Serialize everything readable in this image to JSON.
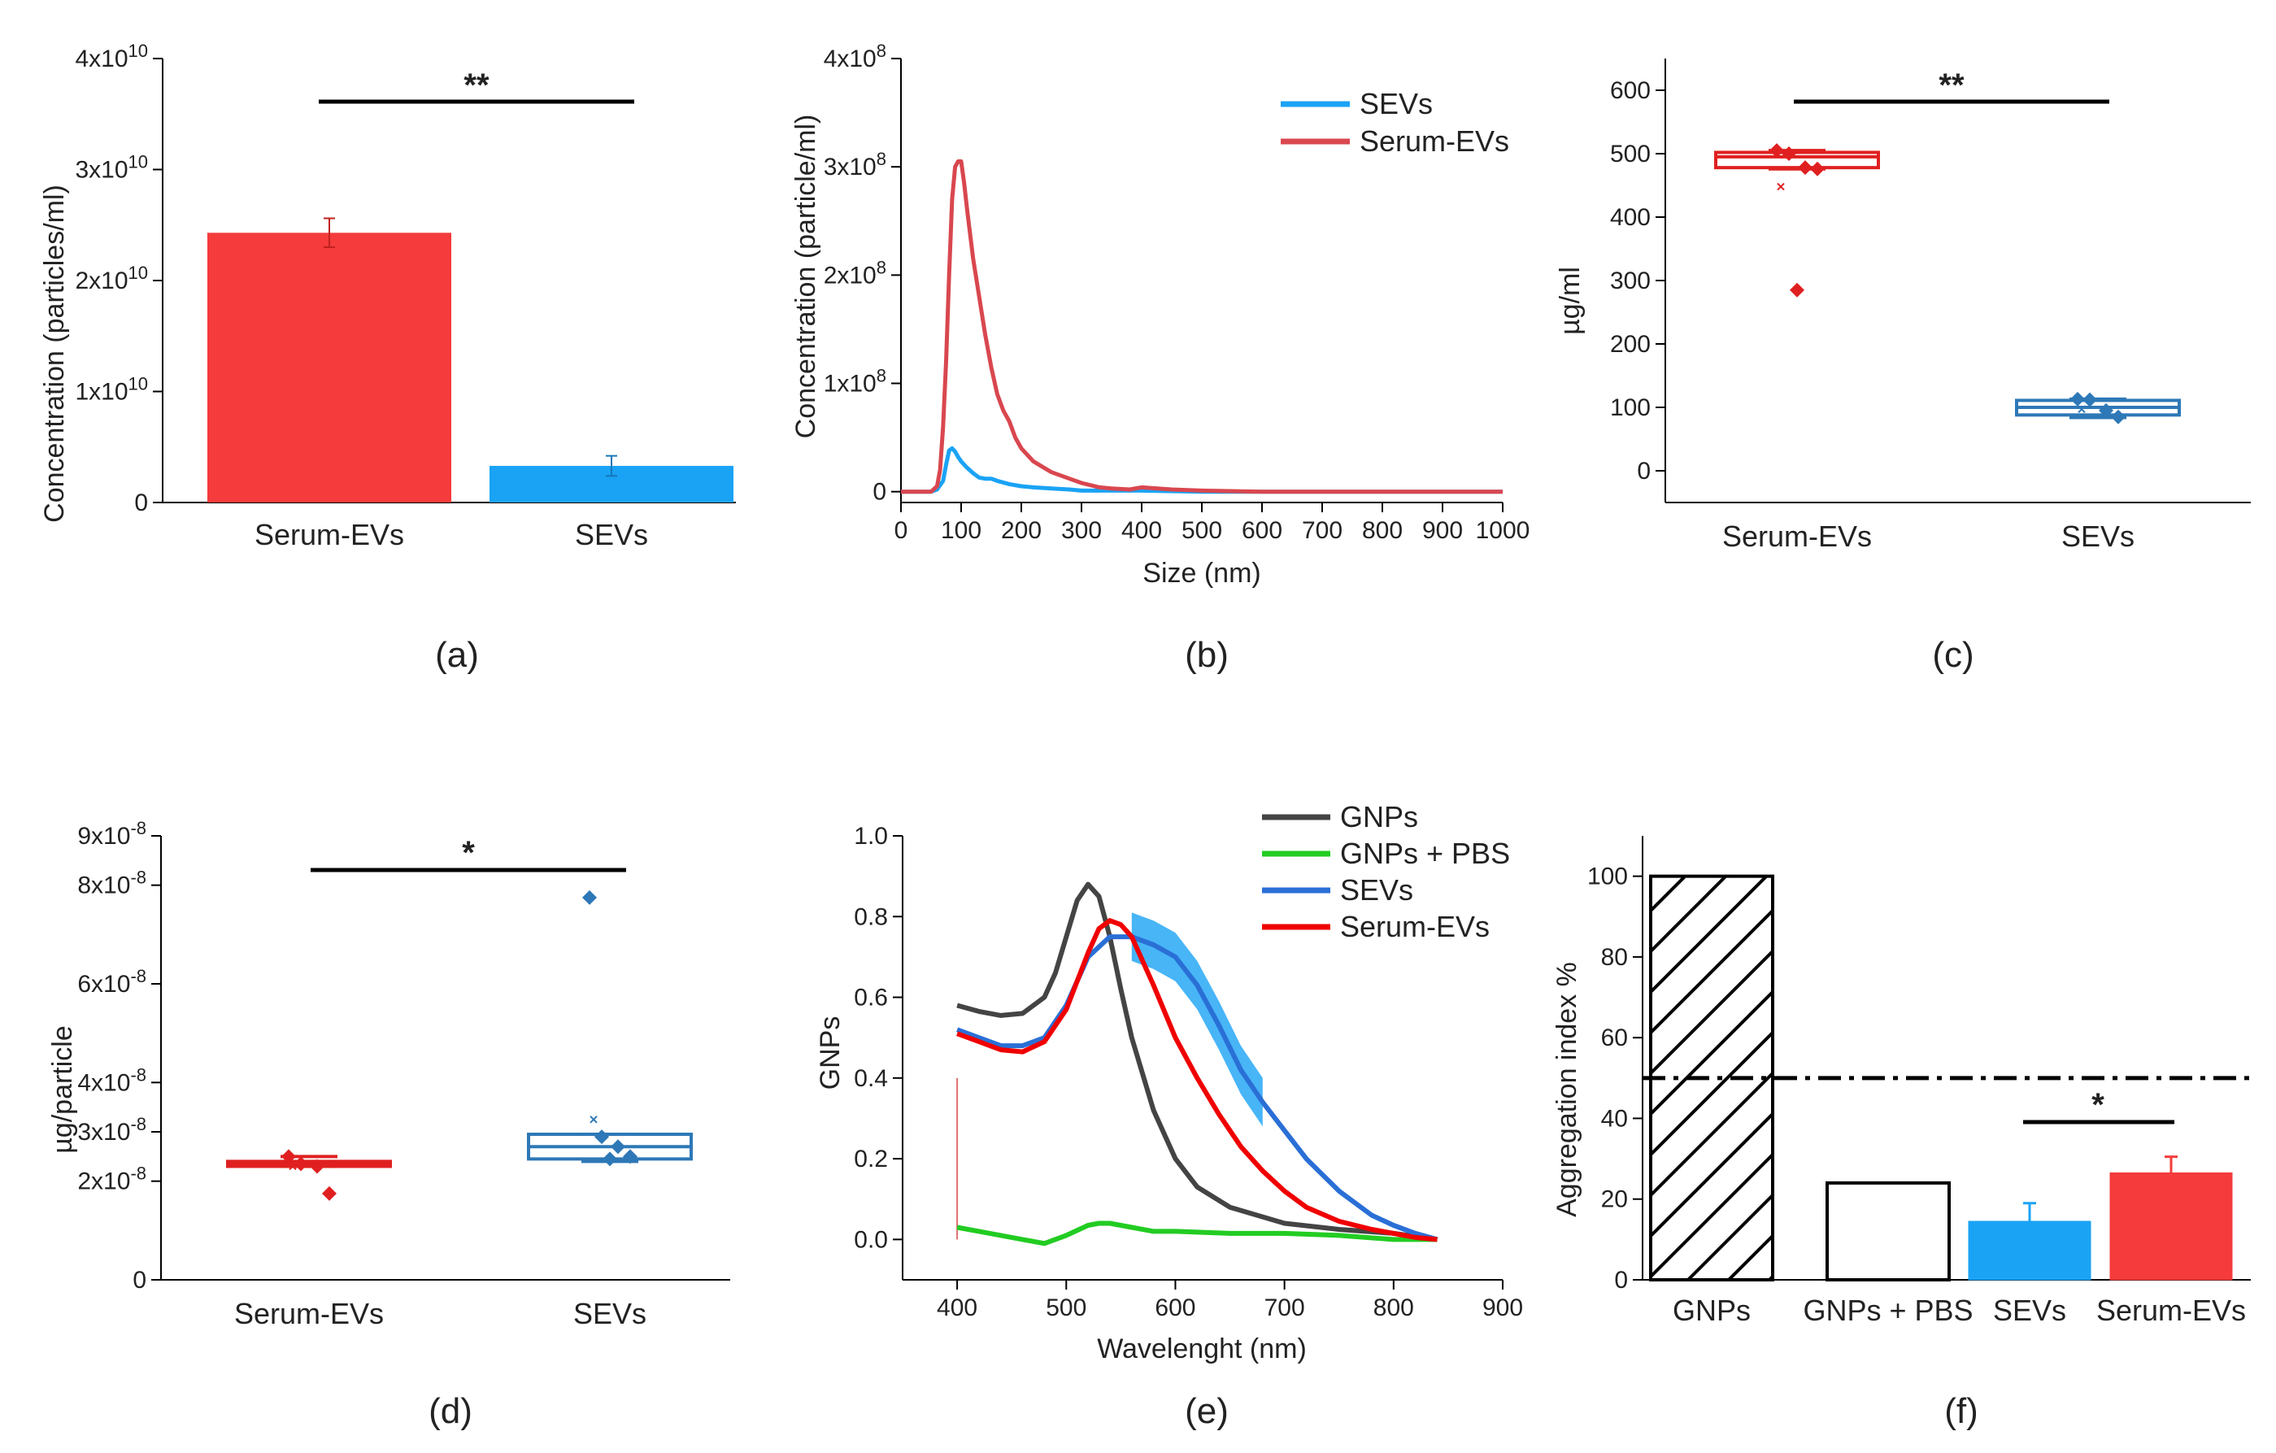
{
  "colors": {
    "serum": "#f53b3b",
    "sevs": "#1aa3f5",
    "gnps": "#444444",
    "pbs": "#22cc22",
    "sevs_line": "#2a6fd6",
    "box_serum": "#e02020",
    "box_sevs": "#2e78b7"
  },
  "chart_data": [
    {
      "id": "a",
      "type": "bar",
      "panel_label": "(a)",
      "ylabel": "Concentration (particles/ml)",
      "yticks": [
        {
          "v": 0,
          "base": "0",
          "exp": ""
        },
        {
          "v": 1,
          "base": "1x10",
          "exp": "10"
        },
        {
          "v": 2,
          "base": "2x10",
          "exp": "10"
        },
        {
          "v": 3,
          "base": "3x10",
          "exp": "10"
        },
        {
          "v": 4,
          "base": "4x10",
          "exp": "10"
        }
      ],
      "ylim": [
        0,
        4
      ],
      "yunit": "x10^10 particles/ml",
      "categories": [
        "Serum-EVs",
        "SEVs"
      ],
      "values": [
        2.43,
        0.33
      ],
      "errors": [
        0.13,
        0.09
      ],
      "significance": "**"
    },
    {
      "id": "b",
      "type": "line",
      "panel_label": "(b)",
      "xlabel": "Size (nm)",
      "ylabel": "Concentration (particle/ml)",
      "xlim": [
        0,
        1000
      ],
      "ylim": [
        -0.1,
        4
      ],
      "xticks": [
        0,
        100,
        200,
        300,
        400,
        500,
        600,
        700,
        800,
        900,
        1000
      ],
      "yticks": [
        {
          "v": 0,
          "base": "0",
          "exp": ""
        },
        {
          "v": 1,
          "base": "1x10",
          "exp": "8"
        },
        {
          "v": 2,
          "base": "2x10",
          "exp": "8"
        },
        {
          "v": 3,
          "base": "3x10",
          "exp": "8"
        },
        {
          "v": 4,
          "base": "4x10",
          "exp": "8"
        }
      ],
      "yunit": "x10^8 particles/ml",
      "series": [
        {
          "name": "SEVs",
          "x": [
            0,
            50,
            60,
            70,
            75,
            80,
            85,
            90,
            95,
            100,
            110,
            120,
            130,
            140,
            150,
            160,
            180,
            200,
            220,
            250,
            280,
            300,
            350,
            400,
            500,
            1000
          ],
          "y": [
            0,
            0,
            0.02,
            0.1,
            0.25,
            0.38,
            0.4,
            0.37,
            0.32,
            0.28,
            0.22,
            0.17,
            0.13,
            0.12,
            0.12,
            0.1,
            0.07,
            0.05,
            0.04,
            0.03,
            0.02,
            0.01,
            0.01,
            0.01,
            0,
            0
          ]
        },
        {
          "name": "Serum-EVs",
          "x": [
            0,
            50,
            60,
            65,
            70,
            75,
            80,
            85,
            90,
            95,
            100,
            105,
            110,
            120,
            130,
            140,
            150,
            160,
            170,
            180,
            190,
            200,
            220,
            250,
            280,
            300,
            330,
            350,
            380,
            400,
            450,
            500,
            600,
            1000
          ],
          "y": [
            0,
            0,
            0.05,
            0.2,
            0.6,
            1.2,
            2.0,
            2.7,
            3.0,
            3.05,
            3.05,
            2.85,
            2.6,
            2.15,
            1.8,
            1.45,
            1.15,
            0.9,
            0.75,
            0.65,
            0.5,
            0.4,
            0.28,
            0.18,
            0.12,
            0.08,
            0.04,
            0.03,
            0.02,
            0.04,
            0.02,
            0.01,
            0,
            0
          ]
        }
      ]
    },
    {
      "id": "c",
      "type": "box",
      "panel_label": "(c)",
      "ylabel": "µg/ml",
      "ylim": [
        -50,
        650
      ],
      "yticks": [
        0,
        100,
        200,
        300,
        400,
        500,
        600
      ],
      "categories": [
        "Serum-EVs",
        "SEVs"
      ],
      "boxes": [
        {
          "q1": 478,
          "median": 495,
          "q3": 502,
          "whisker_low": 476,
          "whisker_high": 505,
          "mean": 448,
          "points": [
            505,
            500,
            478,
            476,
            285
          ]
        },
        {
          "q1": 88,
          "median": 100,
          "q3": 111,
          "whisker_low": 84,
          "whisker_high": 113,
          "mean": 97,
          "points": [
            113,
            112,
            95,
            85
          ]
        }
      ],
      "significance": "**"
    },
    {
      "id": "d",
      "type": "box",
      "panel_label": "(d)",
      "ylabel": "µg/particle",
      "ylim": [
        0,
        9
      ],
      "yticks": [
        {
          "v": 0,
          "base": "0",
          "exp": ""
        },
        {
          "v": 2,
          "base": "2x10",
          "exp": "-8"
        },
        {
          "v": 3,
          "base": "3x10",
          "exp": "-8"
        },
        {
          "v": 4,
          "base": "4x10",
          "exp": "-8"
        },
        {
          "v": 6,
          "base": "6x10",
          "exp": "-8"
        },
        {
          "v": 8,
          "base": "8x10",
          "exp": "-8"
        },
        {
          "v": 9,
          "base": "9x10",
          "exp": "-8"
        }
      ],
      "yunit": "x10^-8 µg/particle",
      "categories": [
        "Serum-EVs",
        "SEVs"
      ],
      "boxes": [
        {
          "q1": 2.3,
          "median": 2.35,
          "q3": 2.4,
          "whisker_low": 2.3,
          "whisker_high": 2.5,
          "mean": 2.3,
          "points": [
            2.5,
            2.35,
            2.3,
            1.75
          ]
        },
        {
          "q1": 2.45,
          "median": 2.7,
          "q3": 2.95,
          "whisker_low": 2.4,
          "whisker_high": 2.95,
          "mean": 3.25,
          "points": [
            7.75,
            2.9,
            2.7,
            2.5,
            2.45
          ]
        }
      ],
      "significance": "*"
    },
    {
      "id": "e",
      "type": "line",
      "panel_label": "(e)",
      "xlabel": "Wavelenght (nm)",
      "ylabel": "GNPs",
      "xlim": [
        350,
        900
      ],
      "ylim": [
        -0.1,
        1.0
      ],
      "xticks": [
        400,
        500,
        600,
        700,
        800,
        900
      ],
      "yticks": [
        "0.0",
        "0.2",
        "0.4",
        "0.6",
        "0.8",
        "1.0"
      ],
      "series": [
        {
          "name": "GNPs",
          "x": [
            400,
            420,
            440,
            460,
            480,
            490,
            500,
            510,
            520,
            530,
            540,
            550,
            560,
            580,
            600,
            620,
            650,
            700,
            750,
            800,
            840
          ],
          "y": [
            0.58,
            0.565,
            0.555,
            0.56,
            0.6,
            0.66,
            0.75,
            0.84,
            0.88,
            0.85,
            0.75,
            0.62,
            0.5,
            0.32,
            0.2,
            0.13,
            0.08,
            0.04,
            0.025,
            0.015,
            0.0
          ]
        },
        {
          "name": "GNPs + PBS",
          "x": [
            400,
            420,
            440,
            460,
            480,
            500,
            520,
            530,
            540,
            560,
            580,
            600,
            650,
            700,
            750,
            800,
            840
          ],
          "y": [
            0.03,
            0.02,
            0.01,
            0.0,
            -0.01,
            0.01,
            0.035,
            0.04,
            0.04,
            0.03,
            0.02,
            0.02,
            0.015,
            0.015,
            0.01,
            0.0,
            0.0
          ]
        },
        {
          "name": "SEVs",
          "x": [
            400,
            420,
            440,
            460,
            480,
            500,
            520,
            540,
            560,
            580,
            600,
            620,
            640,
            660,
            680,
            700,
            720,
            750,
            780,
            800,
            820,
            840
          ],
          "y": [
            0.52,
            0.5,
            0.48,
            0.48,
            0.5,
            0.58,
            0.7,
            0.75,
            0.75,
            0.73,
            0.7,
            0.63,
            0.53,
            0.42,
            0.34,
            0.27,
            0.2,
            0.12,
            0.06,
            0.035,
            0.015,
            0.0
          ]
        },
        {
          "name": "Serum-EVs",
          "x": [
            400,
            420,
            440,
            460,
            480,
            500,
            520,
            530,
            540,
            550,
            560,
            580,
            600,
            620,
            640,
            660,
            680,
            700,
            720,
            750,
            780,
            800,
            820,
            840
          ],
          "y": [
            0.51,
            0.49,
            0.47,
            0.465,
            0.49,
            0.57,
            0.71,
            0.77,
            0.79,
            0.78,
            0.75,
            0.63,
            0.5,
            0.4,
            0.31,
            0.23,
            0.17,
            0.12,
            0.08,
            0.045,
            0.025,
            0.015,
            0.005,
            0.0
          ]
        }
      ]
    },
    {
      "id": "f",
      "type": "bar",
      "panel_label": "(f)",
      "ylabel": "Aggregation index %",
      "ylim": [
        0,
        110
      ],
      "yticks": [
        0,
        20,
        40,
        60,
        80,
        100
      ],
      "categories": [
        "GNPs",
        "GNPs + PBS",
        "SEVs",
        "Serum-EVs"
      ],
      "values": [
        100,
        24,
        14.5,
        26.5
      ],
      "errors": [
        0,
        0,
        4.5,
        4
      ],
      "threshold": 50,
      "significance": "*"
    }
  ]
}
